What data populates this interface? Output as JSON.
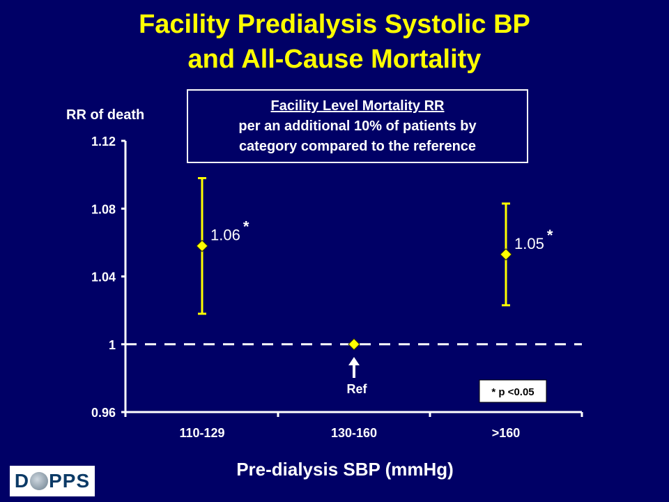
{
  "slide": {
    "title_line1": "Facility Predialysis Systolic BP",
    "title_line2": "and All-Cause Mortality",
    "box_line1": "Facility Level Mortality RR",
    "box_line2": "per an additional 10% of patients by",
    "box_line3": "category compared to the reference",
    "ref_label": "Ref",
    "pnote": "* p <0.05",
    "logo": "DOPPS",
    "colors": {
      "background": "#000066",
      "title": "#ffff00",
      "marker": "#ffff00",
      "text": "#ffffff"
    }
  },
  "chart_data": {
    "type": "scatter",
    "title": "",
    "ylabel": "RR of death",
    "xlabel": "Pre-dialysis SBP  (mmHg)",
    "ylim": [
      0.96,
      1.12
    ],
    "yticks": [
      "0.96",
      "1",
      "1.04",
      "1.08",
      "1.12"
    ],
    "categories": [
      "110-129",
      "130-160",
      ">160"
    ],
    "points": [
      {
        "category": "110-129",
        "rr": 1.058,
        "ci_low": 1.018,
        "ci_high": 1.098,
        "label": "1.06",
        "sig": "*"
      },
      {
        "category": "130-160",
        "rr": 1.0,
        "ci_low": null,
        "ci_high": null,
        "label": "",
        "sig": ""
      },
      {
        "category": ">160",
        "rr": 1.053,
        "ci_low": 1.023,
        "ci_high": 1.083,
        "label": "1.05",
        "sig": "*"
      }
    ],
    "reference_line": 1.0,
    "grid": false
  }
}
